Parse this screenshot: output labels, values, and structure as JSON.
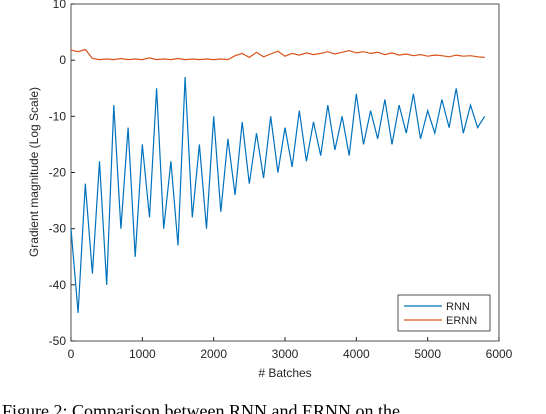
{
  "chart_data": {
    "type": "line",
    "xlabel": "# Batches",
    "ylabel": "Gradient magnitude (Log Scale)",
    "caption": "Figure 2: Comparison between RNN and ERNN on the",
    "x": [
      0,
      100,
      200,
      300,
      400,
      500,
      600,
      700,
      800,
      900,
      1000,
      1100,
      1200,
      1300,
      1400,
      1500,
      1600,
      1700,
      1800,
      1900,
      2000,
      2100,
      2200,
      2300,
      2400,
      2500,
      2600,
      2700,
      2800,
      2900,
      3000,
      3100,
      3200,
      3300,
      3400,
      3500,
      3600,
      3700,
      3800,
      3900,
      4000,
      4100,
      4200,
      4300,
      4400,
      4500,
      4600,
      4700,
      4800,
      4900,
      5000,
      5100,
      5200,
      5300,
      5400,
      5500,
      5600,
      5700,
      5800
    ],
    "series": [
      {
        "name": "RNN",
        "color": "#0072bd",
        "values": [
          -30,
          -45,
          -22,
          -38,
          -18,
          -40,
          -8,
          -30,
          -12,
          -35,
          -15,
          -28,
          -5,
          -30,
          -18,
          -33,
          -3,
          -28,
          -15,
          -30,
          -10,
          -27,
          -14,
          -24,
          -11,
          -22,
          -13,
          -21,
          -10,
          -20,
          -12,
          -19,
          -9,
          -18,
          -11,
          -17,
          -8,
          -16,
          -10,
          -17,
          -6,
          -15,
          -9,
          -14,
          -7,
          -15,
          -8,
          -13,
          -6,
          -14,
          -9,
          -13,
          -7,
          -12,
          -5,
          -13,
          -8,
          -12,
          -10
        ]
      },
      {
        "name": "ERNN",
        "color": "#d95319",
        "values": [
          1.8,
          1.5,
          1.9,
          0.3,
          0.1,
          0.2,
          0.1,
          0.3,
          0.1,
          0.2,
          0.1,
          0.4,
          0.1,
          0.2,
          0.1,
          0.3,
          0.1,
          0.2,
          0.1,
          0.2,
          0.1,
          0.2,
          0.1,
          0.8,
          1.2,
          0.5,
          1.4,
          0.6,
          1.1,
          1.6,
          0.7,
          1.2,
          0.9,
          1.3,
          1.0,
          1.2,
          1.5,
          1.1,
          1.4,
          1.7,
          1.3,
          1.5,
          1.2,
          1.4,
          1.0,
          1.3,
          0.9,
          1.1,
          0.8,
          1.0,
          0.7,
          0.9,
          0.8,
          0.6,
          0.9,
          0.7,
          0.8,
          0.6,
          0.5
        ]
      }
    ],
    "xlim": [
      0,
      6000
    ],
    "xticks": [
      0,
      1000,
      2000,
      3000,
      4000,
      5000,
      6000
    ],
    "ylim": [
      -50,
      10
    ],
    "yticks": [
      -50,
      -40,
      -30,
      -20,
      -10,
      0,
      10
    ],
    "legend": "lower right"
  }
}
